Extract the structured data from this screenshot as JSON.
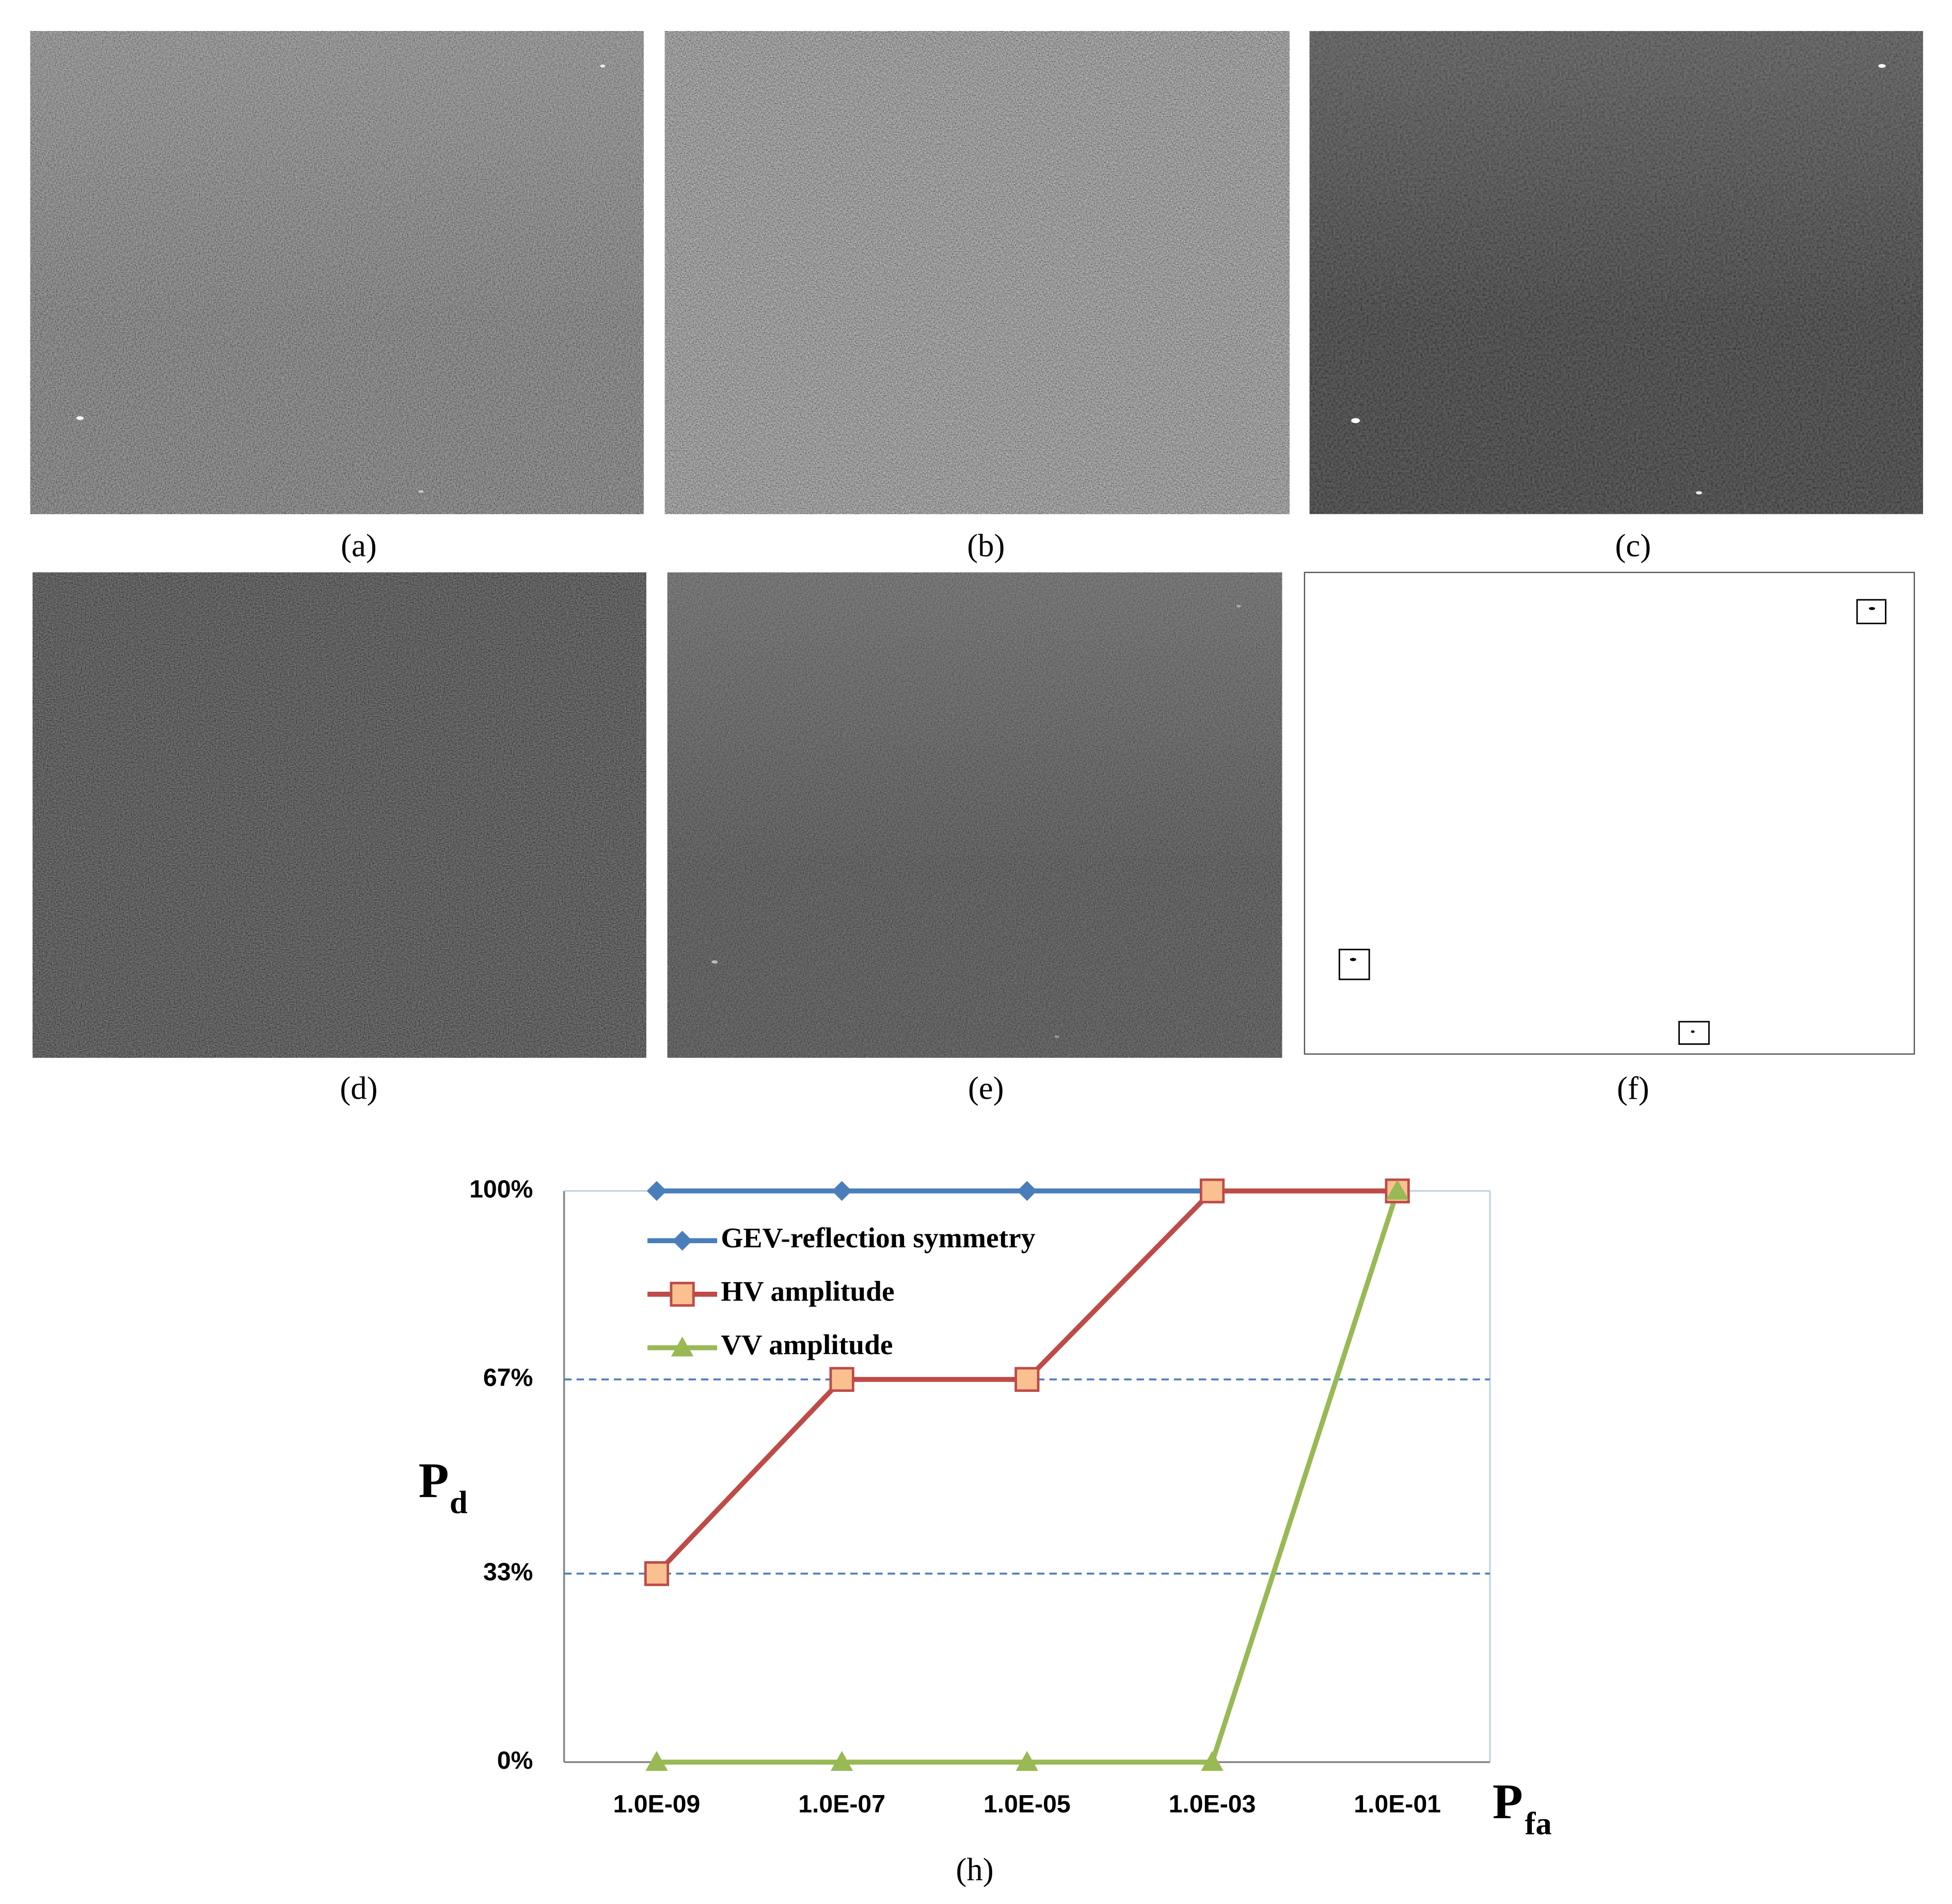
{
  "panels": [
    {
      "caption": "(a)"
    },
    {
      "caption": "(b)"
    },
    {
      "caption": "(c)"
    },
    {
      "caption": "(d)"
    },
    {
      "caption": "(e)"
    },
    {
      "caption": "(f)"
    }
  ],
  "chart_data": {
    "type": "line",
    "caption": "(h)",
    "ylabel": "P",
    "ylabel_sub": "d",
    "xlabel": "P",
    "xlabel_sub": "fa",
    "categories": [
      "1.0E-09",
      "1.0E-07",
      "1.0E-05",
      "1.0E-03",
      "1.0E-01"
    ],
    "ylim": [
      0,
      100
    ],
    "yticks": [
      {
        "value": 0,
        "label": "0%"
      },
      {
        "value": 33,
        "label": "33%"
      },
      {
        "value": 67,
        "label": "67%"
      },
      {
        "value": 100,
        "label": "100%"
      }
    ],
    "grid": true,
    "legend": "upper-left",
    "series": [
      {
        "name": "GEV-reflection symmetry",
        "color": "#4a7ebb",
        "marker": "diamond",
        "values": [
          100,
          100,
          100,
          100,
          100
        ]
      },
      {
        "name": "HV amplitude",
        "color": "#be4b48",
        "marker": "square",
        "values": [
          33,
          67,
          67,
          100,
          100
        ]
      },
      {
        "name": "VV amplitude",
        "color": "#98b954",
        "marker": "triangle",
        "values": [
          0,
          0,
          0,
          0,
          100
        ]
      }
    ]
  }
}
